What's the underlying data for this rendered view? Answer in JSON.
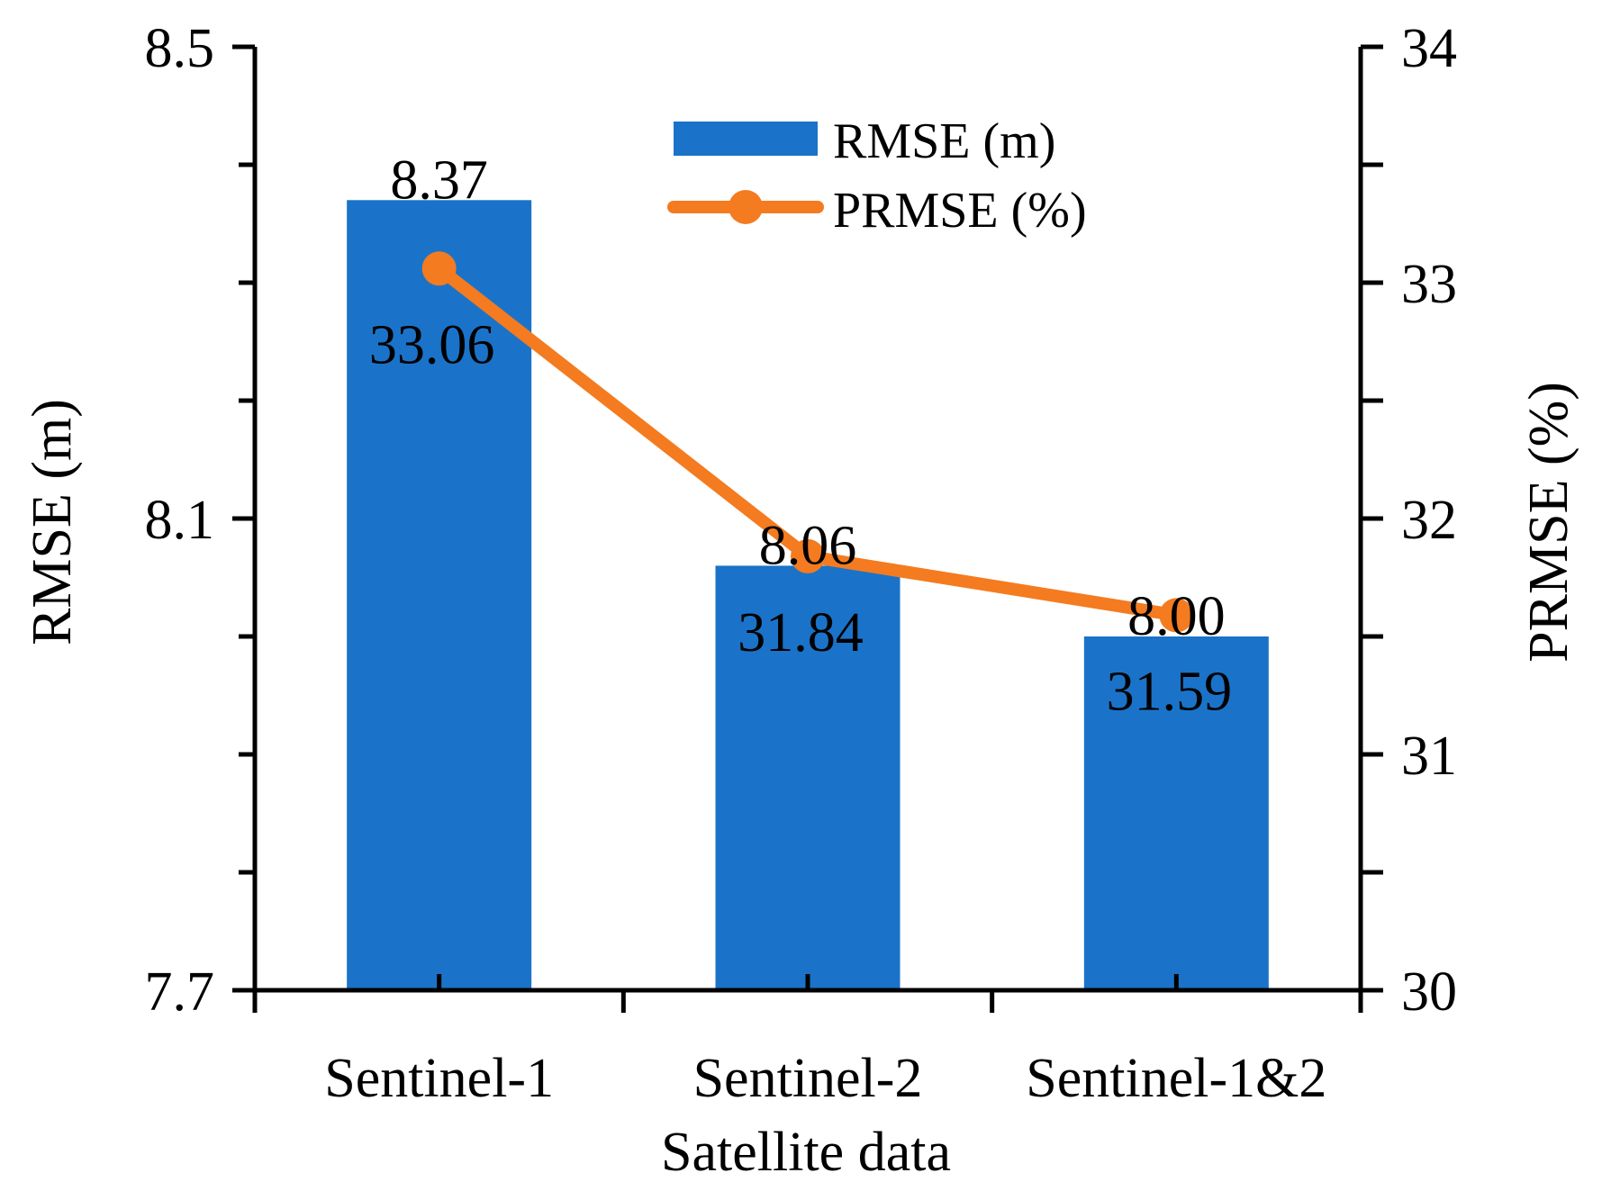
{
  "chart_data": {
    "type": "bar+line",
    "categories": [
      "Sentinel-1",
      "Sentinel-2",
      "Sentinel-1&2"
    ],
    "xlabel": "Satellite data",
    "series": [
      {
        "name": "RMSE (m)",
        "kind": "bar",
        "axis": "left",
        "color": "#1a73c8",
        "values": [
          8.37,
          8.06,
          8.0
        ],
        "labels": [
          "8.37",
          "8.06",
          "8.00"
        ]
      },
      {
        "name": "PRMSE (%)",
        "kind": "line",
        "axis": "right",
        "color": "#f47b20",
        "values": [
          33.06,
          31.84,
          31.59
        ],
        "labels": [
          "33.06",
          "31.84",
          "31.59"
        ]
      }
    ],
    "y_left": {
      "label": "RMSE (m)",
      "range": [
        7.7,
        8.5
      ],
      "major_ticks": [
        7.7,
        8.1,
        8.5
      ],
      "tick_labels": [
        "7.7",
        "8.1",
        "8.5"
      ],
      "minor_step": 0.1
    },
    "y_right": {
      "label": "PRMSE (%)",
      "range": [
        30,
        34
      ],
      "major_ticks": [
        30,
        31,
        32,
        33,
        34
      ],
      "tick_labels": [
        "30",
        "31",
        "32",
        "33",
        "34"
      ],
      "minor_step": 0.5
    },
    "legend": {
      "position": "top-center",
      "entries": [
        {
          "label": "RMSE (m)",
          "marker": "bar",
          "color": "#1a73c8"
        },
        {
          "label": "PRMSE (%)",
          "marker": "line-dot",
          "color": "#f47b20"
        }
      ]
    },
    "grid": false
  }
}
